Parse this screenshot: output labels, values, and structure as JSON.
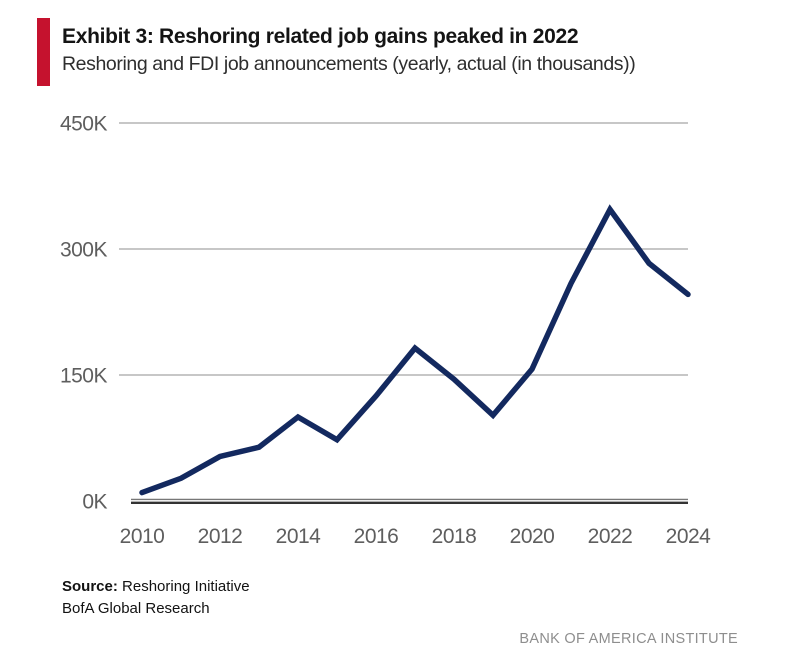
{
  "header": {
    "exhibit_title": "Exhibit 3: Reshoring related job gains peaked in 2022",
    "subtitle": "Reshoring and FDI job announcements (yearly, actual (in thousands))"
  },
  "chart_data": {
    "type": "line",
    "title": "Exhibit 3: Reshoring related job gains peaked in 2022",
    "subtitle": "Reshoring and FDI job announcements (yearly, actual (in thousands))",
    "series_name": "Reshoring and FDI job announcements (thousands)",
    "categories": [
      "2010",
      "2011",
      "2012",
      "2013",
      "2014",
      "2015",
      "2016",
      "2017",
      "2018",
      "2019",
      "2020",
      "2021",
      "2022",
      "2023",
      "2024"
    ],
    "values": [
      10,
      27,
      53,
      64,
      100,
      73,
      125,
      182,
      145,
      102,
      157,
      259,
      347,
      283,
      246
    ],
    "unit": "K",
    "ylim": [
      0,
      450
    ],
    "y_ticks": [
      {
        "label": "0K",
        "value": 0
      },
      {
        "label": "150K",
        "value": 150
      },
      {
        "label": "300K",
        "value": 300
      },
      {
        "label": "450K",
        "value": 450
      }
    ],
    "x_tick_labels": [
      "2010",
      "2012",
      "2014",
      "2016",
      "2018",
      "2020",
      "2022",
      "2024"
    ],
    "grid": "horizontal",
    "legend": "none"
  },
  "footer": {
    "source_label": "Source:",
    "source_value": "Reshoring Initiative",
    "second_line": "BofA Global Research",
    "branding": "BANK OF AMERICA INSTITUTE"
  },
  "colors": {
    "accent_red": "#C5122E",
    "line_navy": "#13295F",
    "grid_gray": "#C7C7C7",
    "axis_label_gray": "#5E5E5E",
    "baseline_gray": "#777777",
    "baseline_dark": "#333333",
    "branding_gray": "#8E8E8E"
  }
}
